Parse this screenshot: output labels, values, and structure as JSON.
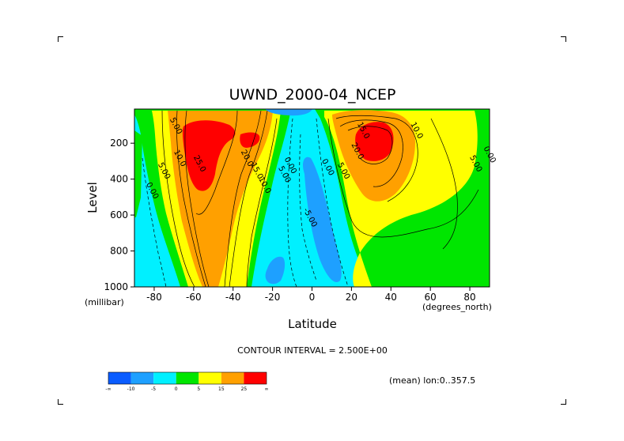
{
  "chart_data": {
    "type": "heatmap",
    "subtype": "filled-contour",
    "title": "UWND_2000-04_NCEP",
    "xlabel": "Latitude",
    "ylabel": "Level",
    "x_units": "(degrees_north)",
    "y_units": "(millibar)",
    "xlim": [
      -90,
      90
    ],
    "ylim": [
      1000,
      10
    ],
    "x_ticks": [
      -80,
      -60,
      -40,
      -20,
      0,
      20,
      40,
      60,
      80
    ],
    "y_ticks": [
      200,
      400,
      600,
      800,
      1000
    ],
    "contour_interval_label": "CONTOUR INTERVAL = 2.500E+00",
    "contour_interval": 2.5,
    "averaging_label": "(mean) lon:0..357.5",
    "colorbar": {
      "colors": [
        "#0a5cff",
        "#1ea0ff",
        "#00f0ff",
        "#00e600",
        "#ffff00",
        "#ffa000",
        "#ff0000"
      ],
      "labels": [
        "-∞",
        "-10",
        "-5",
        "0",
        "5",
        "15",
        "25",
        "∞"
      ]
    },
    "contour_labels": [
      {
        "text": "5.00",
        "lat": -70,
        "level": 110
      },
      {
        "text": "10.0",
        "lat": -68,
        "level": 290
      },
      {
        "text": "5.00",
        "lat": -76,
        "level": 360
      },
      {
        "text": "0.00",
        "lat": -82,
        "level": 470
      },
      {
        "text": "25.0",
        "lat": -58,
        "level": 320
      },
      {
        "text": "20.0",
        "lat": -34,
        "level": 290
      },
      {
        "text": "15.0",
        "lat": -29,
        "level": 360
      },
      {
        "text": "10.0",
        "lat": -25,
        "level": 440
      },
      {
        "text": "5.00",
        "lat": -15,
        "level": 380
      },
      {
        "text": "0.00",
        "lat": -12,
        "level": 330
      },
      {
        "text": "-5.00",
        "lat": -2,
        "level": 620
      },
      {
        "text": "0.00",
        "lat": 7,
        "level": 340
      },
      {
        "text": "5.00",
        "lat": 15,
        "level": 360
      },
      {
        "text": "15.0",
        "lat": 25,
        "level": 135
      },
      {
        "text": "20.0",
        "lat": 22,
        "level": 250
      },
      {
        "text": "10.0",
        "lat": 52,
        "level": 135
      },
      {
        "text": "5.00",
        "lat": 82,
        "level": 320
      },
      {
        "text": "0.00",
        "lat": 89,
        "level": 270
      }
    ]
  }
}
